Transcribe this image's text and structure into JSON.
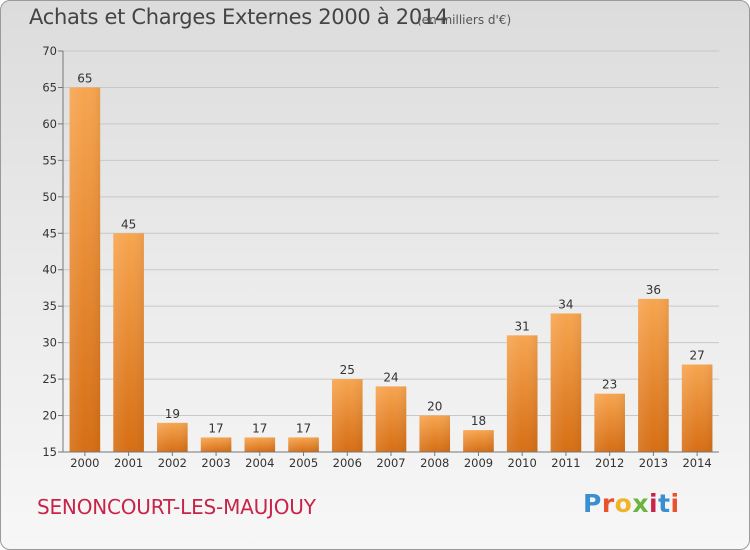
{
  "header": {
    "title": "Achats et Charges Externes 2000 à 2014",
    "subtitle": "(en milliers d'€)"
  },
  "footer": {
    "commune": "SENONCOURT-LES-MAUJOUY",
    "logo": {
      "text": "Proxiti",
      "letter_colors": [
        "#3a8fd0",
        "#e8522c",
        "#f0b429",
        "#6db33f",
        "#c8244a",
        "#3a8fd0",
        "#e8522c"
      ]
    }
  },
  "chart_data": {
    "type": "bar",
    "title": "Achats et Charges Externes 2000 à 2014",
    "subtitle": "(en milliers d'€)",
    "categories": [
      "2000",
      "2001",
      "2002",
      "2003",
      "2004",
      "2005",
      "2006",
      "2007",
      "2008",
      "2009",
      "2010",
      "2011",
      "2012",
      "2013",
      "2014"
    ],
    "values": [
      65,
      45,
      19,
      17,
      17,
      17,
      25,
      24,
      20,
      18,
      31,
      34,
      23,
      36,
      27
    ],
    "xlabel": "",
    "ylabel": "",
    "ylim": [
      15,
      70
    ],
    "yticks": [
      15,
      20,
      25,
      30,
      35,
      40,
      45,
      50,
      55,
      60,
      65,
      70
    ],
    "grid": true,
    "bar_color": "#f09a3a"
  }
}
